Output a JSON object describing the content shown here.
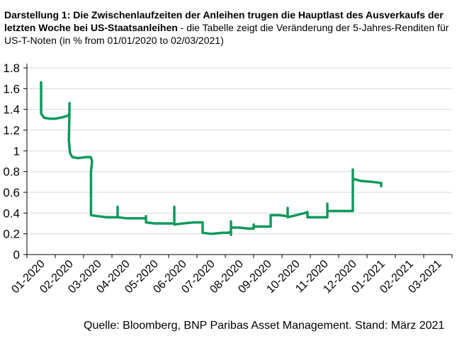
{
  "title": {
    "bold": "Darstellung 1: Die Zwischenlaufzeiten der Anleihen trugen die Hauptlast des Ausverkaufs der letzten Woche bei US-Staatsanleihen",
    "normal": " - die Tabelle zeigt die Veränderung der 5-Jahres-Renditen für US-T-Noten (in % from 01/01/2020 to 02/03/2021)"
  },
  "source": "Quelle: Bloomberg, BNP Paribas Asset Management. Stand: März 2021",
  "colors": {
    "line": "#0f9a5b",
    "grid": "#d9d9d9",
    "axis": "#000000"
  },
  "chart_data": {
    "type": "line",
    "categories": [
      "01-2020",
      "02-2020",
      "03-2020",
      "04-2020",
      "05-2020",
      "06-2020",
      "07-2020",
      "08-2020",
      "09-2020",
      "10-2020",
      "11-2020",
      "12-2020",
      "01-2021",
      "02-2021",
      "03-2021"
    ],
    "yticks": [
      "0",
      "0.2",
      "0.4",
      "0.6",
      "0.8",
      "1",
      "1.2",
      "1.4",
      "1.6",
      "1.8"
    ],
    "ylim": [
      0,
      1.8
    ],
    "grid": true,
    "legend": "none",
    "series": [
      {
        "values": [
          [
            0.5,
            1.66
          ],
          [
            0.5,
            1.36
          ],
          [
            0.6,
            1.32
          ],
          [
            0.8,
            1.31
          ],
          [
            1.0,
            1.31
          ],
          [
            1.2,
            1.32
          ],
          [
            1.45,
            1.34
          ],
          [
            1.5,
            1.36
          ],
          [
            1.5,
            1.46
          ],
          [
            1.5,
            1.36
          ],
          [
            1.48,
            1.1
          ],
          [
            1.52,
            0.98
          ],
          [
            1.6,
            0.94
          ],
          [
            1.8,
            0.93
          ],
          [
            2.1,
            0.94
          ],
          [
            2.25,
            0.94
          ],
          [
            2.3,
            0.9
          ],
          [
            2.26,
            0.8
          ],
          [
            2.26,
            0.38
          ],
          [
            2.5,
            0.37
          ],
          [
            2.8,
            0.36
          ],
          [
            3.1,
            0.36
          ],
          [
            3.2,
            0.36
          ],
          [
            3.2,
            0.46
          ],
          [
            3.2,
            0.36
          ],
          [
            3.5,
            0.35
          ],
          [
            3.8,
            0.35
          ],
          [
            4.1,
            0.35
          ],
          [
            4.2,
            0.35
          ],
          [
            4.2,
            0.37
          ],
          [
            4.2,
            0.31
          ],
          [
            4.5,
            0.3
          ],
          [
            4.9,
            0.3
          ],
          [
            5.2,
            0.3
          ],
          [
            5.2,
            0.46
          ],
          [
            5.2,
            0.29
          ],
          [
            5.5,
            0.3
          ],
          [
            5.9,
            0.31
          ],
          [
            6.2,
            0.31
          ],
          [
            6.2,
            0.21
          ],
          [
            6.5,
            0.2
          ],
          [
            6.9,
            0.21
          ],
          [
            7.1,
            0.21
          ],
          [
            7.2,
            0.22
          ],
          [
            7.2,
            0.19
          ],
          [
            7.2,
            0.32
          ],
          [
            7.2,
            0.26
          ],
          [
            7.5,
            0.26
          ],
          [
            7.8,
            0.25
          ],
          [
            8.0,
            0.25
          ],
          [
            8.0,
            0.29
          ],
          [
            8.0,
            0.27
          ],
          [
            8.4,
            0.27
          ],
          [
            8.6,
            0.27
          ],
          [
            8.6,
            0.38
          ],
          [
            8.9,
            0.38
          ],
          [
            9.2,
            0.37
          ],
          [
            9.2,
            0.45
          ],
          [
            9.2,
            0.36
          ],
          [
            9.5,
            0.38
          ],
          [
            9.8,
            0.4
          ],
          [
            9.9,
            0.41
          ],
          [
            9.9,
            0.36
          ],
          [
            10.2,
            0.36
          ],
          [
            10.6,
            0.36
          ],
          [
            10.6,
            0.41
          ],
          [
            10.6,
            0.37
          ],
          [
            10.6,
            0.49
          ],
          [
            10.6,
            0.42
          ],
          [
            10.9,
            0.42
          ],
          [
            11.2,
            0.42
          ],
          [
            11.5,
            0.42
          ],
          [
            11.5,
            0.64
          ],
          [
            11.5,
            0.82
          ],
          [
            11.5,
            0.73
          ],
          [
            11.8,
            0.71
          ],
          [
            12.2,
            0.7
          ],
          [
            12.5,
            0.69
          ],
          [
            12.5,
            0.66
          ]
        ]
      }
    ]
  }
}
